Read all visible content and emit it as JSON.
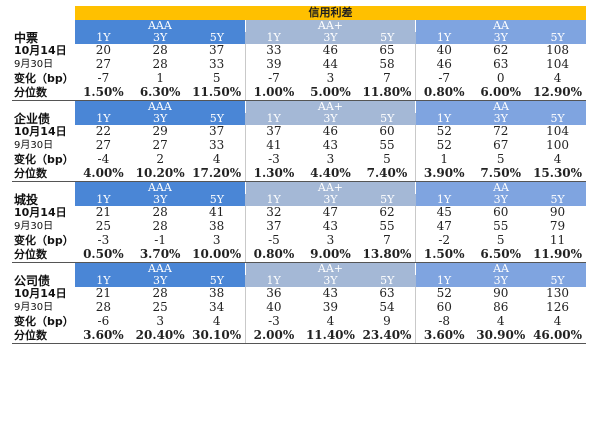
{
  "title": "信用利差",
  "grades": [
    "AAA",
    "AA+",
    "AA"
  ],
  "tenors": [
    "1Y",
    "3Y",
    "5Y"
  ],
  "row_labels": {
    "current": "10月14日",
    "previous": "9月30日",
    "change": "变化（bp）",
    "percentile": "分位数"
  },
  "sections": [
    {
      "name": "中票",
      "current": [
        "20",
        "28",
        "37",
        "33",
        "46",
        "65",
        "40",
        "62",
        "108"
      ],
      "previous": [
        "27",
        "28",
        "33",
        "39",
        "44",
        "58",
        "46",
        "63",
        "104"
      ],
      "change": [
        "-7",
        "1",
        "5",
        "-7",
        "3",
        "7",
        "-7",
        "0",
        "4"
      ],
      "percentile": [
        "1.50%",
        "6.30%",
        "11.50%",
        "1.00%",
        "5.00%",
        "11.80%",
        "0.80%",
        "6.00%",
        "12.90%"
      ]
    },
    {
      "name": "企业债",
      "current": [
        "22",
        "29",
        "37",
        "37",
        "46",
        "60",
        "52",
        "72",
        "104"
      ],
      "previous": [
        "27",
        "27",
        "33",
        "41",
        "43",
        "55",
        "52",
        "67",
        "100"
      ],
      "change": [
        "-4",
        "2",
        "4",
        "-3",
        "3",
        "5",
        "1",
        "5",
        "4"
      ],
      "percentile": [
        "4.00%",
        "10.20%",
        "17.20%",
        "1.30%",
        "4.40%",
        "7.40%",
        "3.90%",
        "7.50%",
        "15.30%"
      ]
    },
    {
      "name": "城投",
      "current": [
        "21",
        "28",
        "41",
        "32",
        "47",
        "62",
        "45",
        "60",
        "90"
      ],
      "previous": [
        "25",
        "28",
        "38",
        "37",
        "43",
        "55",
        "47",
        "55",
        "79"
      ],
      "change": [
        "-3",
        "-1",
        "3",
        "-5",
        "3",
        "7",
        "-2",
        "5",
        "11"
      ],
      "percentile": [
        "0.50%",
        "3.70%",
        "10.00%",
        "0.80%",
        "9.00%",
        "13.80%",
        "1.50%",
        "6.50%",
        "11.90%"
      ]
    },
    {
      "name": "公司债",
      "current": [
        "21",
        "28",
        "38",
        "36",
        "43",
        "63",
        "52",
        "90",
        "130"
      ],
      "previous": [
        "28",
        "25",
        "34",
        "40",
        "39",
        "54",
        "60",
        "86",
        "126"
      ],
      "change": [
        "-6",
        "3",
        "4",
        "-3",
        "4",
        "9",
        "-8",
        "4",
        "4"
      ],
      "percentile": [
        "3.60%",
        "20.40%",
        "30.10%",
        "2.00%",
        "11.40%",
        "23.40%",
        "3.60%",
        "30.90%",
        "46.00%"
      ]
    }
  ],
  "colors": {
    "title_bg": "#FFC000",
    "aaa_header": "#4A86D6",
    "aa_plus_header": "#A4B8D6",
    "aa_header": "#7FA4E0"
  }
}
